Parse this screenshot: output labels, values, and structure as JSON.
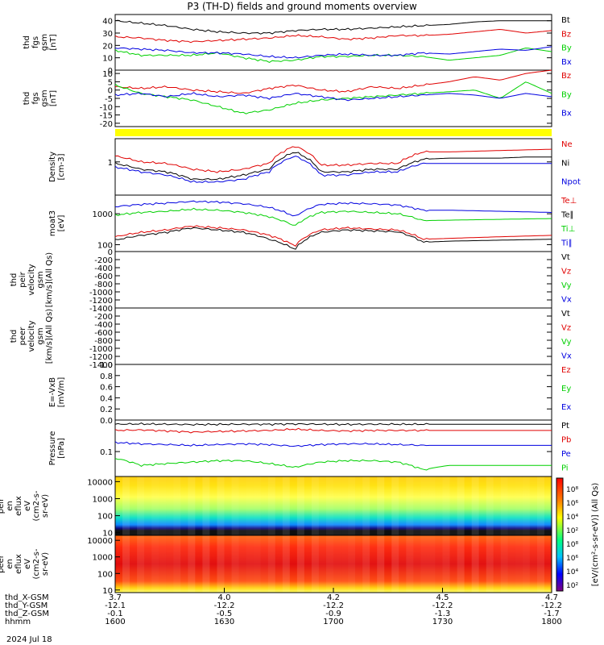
{
  "title": "P3 (TH-D) fields and ground moments overview",
  "date_label": "2024 Jul 18",
  "colors": {
    "black": "#000000",
    "red": "#e00000",
    "green": "#00d000",
    "blue": "#0000e0",
    "yellow": "#ffff00"
  },
  "orbit_labels": [
    "thd_X-GSM",
    "thd_Y-GSM",
    "thd_Z-GSM",
    "hhmm"
  ],
  "orbit_ticks": [
    {
      "x": "3.7",
      "y": "-12.1",
      "z": "-0.1",
      "t": "1600"
    },
    {
      "x": "4.0",
      "y": "-12.2",
      "z": "-0.5",
      "t": "1630"
    },
    {
      "x": "4.2",
      "y": "-12.2",
      "z": "-0.9",
      "t": "1700"
    },
    {
      "x": "4.5",
      "y": "-12.2",
      "z": "-1.3",
      "t": "1730"
    },
    {
      "x": "4.7",
      "y": "-12.2",
      "z": "-1.7",
      "t": "1800"
    }
  ],
  "colorbar_label": "[eV/(cm²-s-sr-eV)] (All Qs)",
  "chart_data": [
    {
      "id": "fgs",
      "type": "line",
      "ylabel": [
        "thd",
        "fgs",
        "gsm",
        "[nT]"
      ],
      "ylim": [
        0,
        45
      ],
      "yticks": [
        "0",
        "10",
        "20",
        "30",
        "40"
      ],
      "series": [
        {
          "name": "Bt",
          "color": "black",
          "values": [
            40,
            38,
            36,
            33,
            31,
            30,
            30,
            32,
            33,
            33,
            34,
            35,
            36,
            37,
            39,
            40,
            40,
            40
          ]
        },
        {
          "name": "Bz",
          "color": "red",
          "values": [
            27,
            26,
            24,
            23,
            24,
            25,
            26,
            28,
            27,
            25,
            26,
            28,
            28,
            29,
            31,
            33,
            30,
            32
          ]
        },
        {
          "name": "By",
          "color": "green",
          "values": [
            16,
            12,
            12,
            12,
            14,
            10,
            7,
            8,
            11,
            11,
            12,
            12,
            11,
            8,
            10,
            12,
            18,
            15
          ]
        },
        {
          "name": "Bx",
          "color": "blue",
          "values": [
            18,
            17,
            16,
            14,
            14,
            13,
            11,
            10,
            12,
            13,
            12,
            12,
            14,
            13,
            15,
            17,
            16,
            19
          ]
        }
      ]
    },
    {
      "id": "fgs_dsl",
      "type": "line",
      "ylabel": [
        "thd",
        "fgs",
        "gsm",
        "[nT]"
      ],
      "ylim": [
        -22,
        12
      ],
      "yticks": [
        "-20",
        "-15",
        "-10",
        "-5",
        "0",
        "5",
        "10"
      ],
      "series": [
        {
          "name": "Bz",
          "color": "red",
          "values": [
            2,
            1,
            2,
            0,
            -1,
            -2,
            1,
            3,
            0,
            -1,
            2,
            1,
            3,
            5,
            8,
            6,
            10,
            12
          ]
        },
        {
          "name": "By",
          "color": "green",
          "values": [
            3,
            -2,
            -4,
            -6,
            -10,
            -14,
            -12,
            -8,
            -6,
            -5,
            -4,
            -3,
            -2,
            -1,
            0,
            -5,
            5,
            -2
          ]
        },
        {
          "name": "Bx",
          "color": "blue",
          "values": [
            -3,
            -2,
            -4,
            -2,
            -4,
            -3,
            -5,
            -2,
            -4,
            -6,
            -5,
            -4,
            -3,
            -2,
            -3,
            -5,
            -2,
            -4
          ]
        }
      ]
    },
    {
      "id": "density",
      "type": "line",
      "scale": "log",
      "ylabel": [
        "Density",
        "[cm-3]"
      ],
      "ylim": [
        0.1,
        5
      ],
      "yticks": [
        "1"
      ],
      "series": [
        {
          "name": "Ne",
          "color": "red",
          "values": [
            1.5,
            1.0,
            0.9,
            0.6,
            0.5,
            0.6,
            0.9,
            3.0,
            0.8,
            0.8,
            0.9,
            0.9,
            2.0,
            2.0,
            2.1,
            2.2,
            2.3,
            2.4
          ]
        },
        {
          "name": "Ni",
          "color": "black",
          "values": [
            0.9,
            0.6,
            0.5,
            0.3,
            0.3,
            0.4,
            0.6,
            2.0,
            0.5,
            0.5,
            0.6,
            0.6,
            1.2,
            1.3,
            1.3,
            1.3,
            1.4,
            1.4
          ]
        },
        {
          "name": "Npot",
          "color": "blue",
          "values": [
            0.7,
            0.5,
            0.4,
            0.25,
            0.25,
            0.3,
            0.5,
            1.5,
            0.4,
            0.4,
            0.5,
            0.5,
            0.9,
            0.9,
            0.9,
            0.9,
            0.9,
            0.9
          ]
        }
      ]
    },
    {
      "id": "temperature",
      "type": "line",
      "scale": "log",
      "ylabel": [
        "moat3",
        "[eV]"
      ],
      "ylim": [
        60,
        4000
      ],
      "yticks": [
        "100",
        "1000"
      ],
      "series": [
        {
          "name": "Te⊥",
          "color": "red",
          "values": [
            180,
            250,
            300,
            400,
            350,
            300,
            200,
            90,
            300,
            350,
            320,
            300,
            150,
            160,
            170,
            180,
            190,
            200
          ]
        },
        {
          "name": "Te∥",
          "color": "black",
          "values": [
            140,
            200,
            250,
            350,
            300,
            250,
            150,
            70,
            250,
            300,
            280,
            260,
            120,
            130,
            135,
            140,
            145,
            150
          ]
        },
        {
          "name": "Ti⊥",
          "color": "green",
          "values": [
            900,
            1100,
            1200,
            1400,
            1300,
            1100,
            800,
            400,
            1100,
            1200,
            1100,
            1000,
            600,
            620,
            640,
            660,
            680,
            700
          ]
        },
        {
          "name": "Ti∥",
          "color": "blue",
          "values": [
            1700,
            2000,
            2200,
            2500,
            2400,
            2100,
            1600,
            800,
            2000,
            2200,
            2100,
            1900,
            1300,
            1300,
            1250,
            1200,
            1150,
            1100
          ]
        }
      ]
    },
    {
      "id": "peir_vel",
      "type": "line",
      "ylabel": [
        "thd",
        "peir",
        "velocity",
        "gsm",
        "[km/s](All Qs)"
      ],
      "ylim": [
        -1400,
        0
      ],
      "yticks": [
        "0",
        "-200",
        "-400",
        "-600",
        "-800",
        "-1000",
        "-1200",
        "-1400"
      ],
      "series": [
        {
          "name": "Vt",
          "color": "black",
          "values": []
        },
        {
          "name": "Vz",
          "color": "red",
          "values": []
        },
        {
          "name": "Vy",
          "color": "green",
          "values": []
        },
        {
          "name": "Vx",
          "color": "blue",
          "values": []
        }
      ]
    },
    {
      "id": "peer_vel",
      "type": "line",
      "ylabel": [
        "thd",
        "peer",
        "velocity",
        "gsm",
        "[km/s](All Qs)"
      ],
      "ylim": [
        -1400,
        0
      ],
      "yticks": [
        "-200",
        "-400",
        "-600",
        "-800",
        "-1000",
        "-1200",
        "-1400"
      ],
      "series": [
        {
          "name": "Vt",
          "color": "black",
          "values": []
        },
        {
          "name": "Vz",
          "color": "red",
          "values": []
        },
        {
          "name": "Vy",
          "color": "green",
          "values": []
        },
        {
          "name": "Vx",
          "color": "blue",
          "values": []
        }
      ]
    },
    {
      "id": "efield",
      "type": "line",
      "ylabel": [
        "E=-VxB",
        "[mV/m]"
      ],
      "ylim": [
        0,
        1
      ],
      "yticks": [
        "0.0",
        "0.2",
        "0.4",
        "0.6",
        "0.8",
        "1.0"
      ],
      "series": [
        {
          "name": "Ez",
          "color": "red",
          "values": []
        },
        {
          "name": "Ey",
          "color": "green",
          "values": []
        },
        {
          "name": "Ex",
          "color": "blue",
          "values": []
        }
      ]
    },
    {
      "id": "pressure",
      "type": "line",
      "scale": "log",
      "ylabel": [
        "Pressure",
        "[nPa]"
      ],
      "ylim": [
        0.015,
        1.1
      ],
      "yticks": [
        "0.1"
      ],
      "series": [
        {
          "name": "Pt",
          "color": "black",
          "values": [
            0.8,
            0.82,
            0.8,
            0.78,
            0.79,
            0.8,
            0.8,
            0.82,
            0.8,
            0.79,
            0.8,
            0.8,
            0.8,
            0.8,
            0.8,
            0.8,
            0.8,
            0.8
          ]
        },
        {
          "name": "Pb",
          "color": "red",
          "values": [
            0.5,
            0.52,
            0.48,
            0.44,
            0.46,
            0.48,
            0.5,
            0.55,
            0.5,
            0.48,
            0.5,
            0.5,
            0.5,
            0.5,
            0.5,
            0.5,
            0.5,
            0.5
          ]
        },
        {
          "name": "Pe",
          "color": "blue",
          "values": [
            0.2,
            0.18,
            0.17,
            0.16,
            0.17,
            0.18,
            0.17,
            0.15,
            0.17,
            0.18,
            0.18,
            0.17,
            0.16,
            0.16,
            0.16,
            0.16,
            0.16,
            0.16
          ]
        },
        {
          "name": "Pi",
          "color": "green",
          "values": [
            0.06,
            0.035,
            0.04,
            0.045,
            0.05,
            0.05,
            0.04,
            0.03,
            0.045,
            0.05,
            0.05,
            0.045,
            0.025,
            0.035,
            0.035,
            0.035,
            0.035,
            0.035
          ]
        }
      ]
    },
    {
      "id": "peir_en",
      "type": "heatmap",
      "ylabel": [
        "thd",
        "peir",
        "en",
        "eflux",
        "eV",
        "(cm2-s-",
        "sr-eV)"
      ],
      "yticks": [
        "10",
        "100",
        "1000",
        "10000"
      ],
      "colorbar_ticks": [
        "10⁸",
        "10⁶",
        "10⁴",
        "10²"
      ]
    },
    {
      "id": "peer_en",
      "type": "heatmap",
      "ylabel": [
        "thd",
        "peer",
        "en",
        "eflux",
        "eV",
        "(cm2-s-",
        "sr-eV)"
      ],
      "yticks": [
        "10",
        "100",
        "1000",
        "10000"
      ],
      "colorbar_ticks": [
        "10⁸",
        "10⁶",
        "10⁴",
        "10²"
      ]
    }
  ]
}
